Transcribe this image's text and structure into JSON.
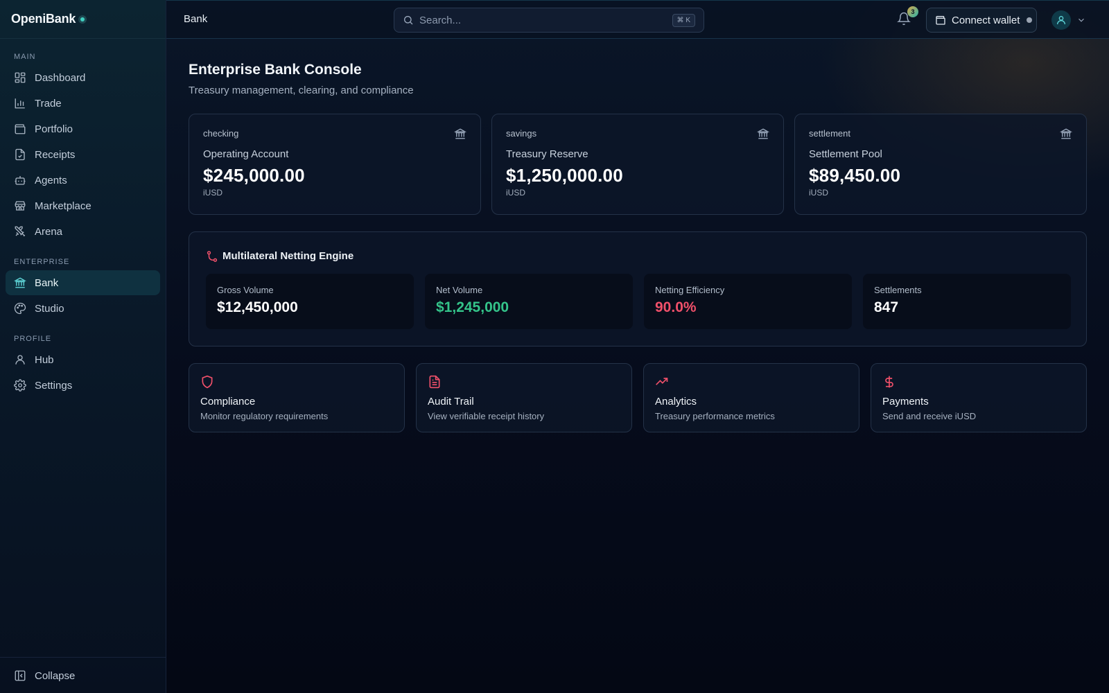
{
  "app": {
    "brand": "OpeniBank"
  },
  "sidebar": {
    "sections": [
      {
        "label": "MAIN",
        "items": [
          {
            "label": "Dashboard",
            "icon": "dashboard-icon"
          },
          {
            "label": "Trade",
            "icon": "bar-chart-icon"
          },
          {
            "label": "Portfolio",
            "icon": "wallet-icon"
          },
          {
            "label": "Receipts",
            "icon": "receipt-icon"
          },
          {
            "label": "Agents",
            "icon": "bot-icon"
          },
          {
            "label": "Marketplace",
            "icon": "store-icon"
          },
          {
            "label": "Arena",
            "icon": "swords-icon"
          }
        ]
      },
      {
        "label": "ENTERPRISE",
        "items": [
          {
            "label": "Bank",
            "icon": "bank-icon",
            "active": true
          },
          {
            "label": "Studio",
            "icon": "palette-icon"
          }
        ]
      },
      {
        "label": "PROFILE",
        "items": [
          {
            "label": "Hub",
            "icon": "user-icon"
          },
          {
            "label": "Settings",
            "icon": "gear-icon"
          }
        ]
      }
    ],
    "collapse_label": "Collapse"
  },
  "topbar": {
    "breadcrumb": "Bank",
    "search_placeholder": "Search...",
    "search_shortcut": "⌘ K",
    "notification_count": "3",
    "wallet_label": "Connect wallet"
  },
  "page": {
    "title": "Enterprise Bank Console",
    "subtitle": "Treasury management, clearing, and compliance"
  },
  "accounts": [
    {
      "type": "checking",
      "name": "Operating Account",
      "amount": "$245,000.00",
      "unit": "iUSD"
    },
    {
      "type": "savings",
      "name": "Treasury Reserve",
      "amount": "$1,250,000.00",
      "unit": "iUSD"
    },
    {
      "type": "settlement",
      "name": "Settlement Pool",
      "amount": "$89,450.00",
      "unit": "iUSD"
    }
  ],
  "netting": {
    "title": "Multilateral Netting Engine",
    "metrics": [
      {
        "label": "Gross Volume",
        "value": "$12,450,000",
        "color": "#ffffff"
      },
      {
        "label": "Net Volume",
        "value": "$1,245,000",
        "color": "#34c48a"
      },
      {
        "label": "Netting Efficiency",
        "value": "90.0%",
        "color": "#f0506a"
      },
      {
        "label": "Settlements",
        "value": "847",
        "color": "#ffffff"
      }
    ]
  },
  "features": [
    {
      "title": "Compliance",
      "desc": "Monitor regulatory requirements",
      "icon": "shield-icon"
    },
    {
      "title": "Audit Trail",
      "desc": "View verifiable receipt history",
      "icon": "document-icon"
    },
    {
      "title": "Analytics",
      "desc": "Treasury performance metrics",
      "icon": "trending-up-icon"
    },
    {
      "title": "Payments",
      "desc": "Send and receive iUSD",
      "icon": "dollar-icon"
    }
  ],
  "colors": {
    "accent": "#f0506a",
    "active_nav": "#0f3140",
    "teal": "#5fd6d8"
  }
}
